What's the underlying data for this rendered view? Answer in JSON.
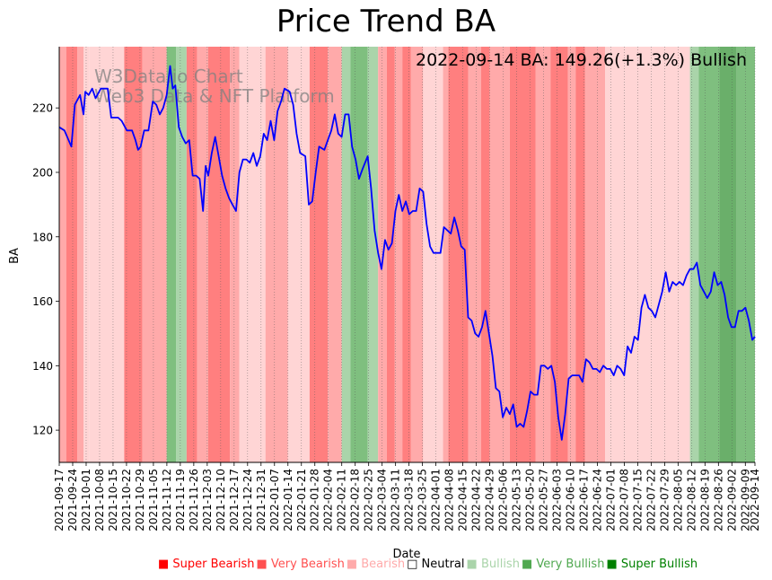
{
  "chart_data": {
    "type": "line",
    "title": "Price Trend BA",
    "xlabel": "Date",
    "ylabel": "BA",
    "ylim": [
      110,
      239
    ],
    "yticks": [
      120,
      140,
      160,
      180,
      200,
      220
    ],
    "annotation": "2022-09-14 BA: 149.26(+1.3%) Bullish",
    "watermark": [
      "W3Data.io Chart",
      "Web3 Data & NFT Platform"
    ],
    "x_start": "2021-09-17",
    "x_end": "2022-09-14",
    "xticks": [
      "2021-09-17",
      "2021-09-24",
      "2021-10-01",
      "2021-10-08",
      "2021-10-15",
      "2021-10-22",
      "2021-10-29",
      "2021-11-05",
      "2021-11-12",
      "2021-11-19",
      "2021-11-26",
      "2021-12-03",
      "2021-12-10",
      "2021-12-17",
      "2021-12-24",
      "2021-12-31",
      "2022-01-07",
      "2022-01-14",
      "2022-01-21",
      "2022-01-28",
      "2022-02-04",
      "2022-02-11",
      "2022-02-18",
      "2022-02-25",
      "2022-03-04",
      "2022-03-11",
      "2022-03-18",
      "2022-03-25",
      "2022-04-01",
      "2022-04-08",
      "2022-04-15",
      "2022-04-22",
      "2022-04-29",
      "2022-05-06",
      "2022-05-13",
      "2022-05-20",
      "2022-05-27",
      "2022-06-03",
      "2022-06-10",
      "2022-06-17",
      "2022-06-24",
      "2022-07-01",
      "2022-07-08",
      "2022-07-15",
      "2022-07-22",
      "2022-07-29",
      "2022-08-05",
      "2022-08-12",
      "2022-08-19",
      "2022-08-26",
      "2022-09-02",
      "2022-09-09",
      "2022-09-14"
    ],
    "sentiment_colors": {
      "super_bearish": "#ff0000",
      "very_bearish": "#ff5050",
      "bearish": "#ffaaaa",
      "neutral": "#ffffff",
      "bullish": "#aad4aa",
      "very_bullish": "#50a850",
      "super_bullish": "#008000"
    },
    "legend": [
      {
        "key": "super_bearish",
        "label": "Super Bearish",
        "symbol": "■",
        "color": "#ff0000"
      },
      {
        "key": "very_bearish",
        "label": "Very Bearish",
        "symbol": "■",
        "color": "#ff5050"
      },
      {
        "key": "bearish",
        "label": "Bearish",
        "symbol": "■",
        "color": "#ffaaaa"
      },
      {
        "key": "neutral",
        "label": "Neutral",
        "symbol": "□",
        "color": "#000000"
      },
      {
        "key": "bullish",
        "label": "Bullish",
        "symbol": "■",
        "color": "#aad4aa"
      },
      {
        "key": "very_bullish",
        "label": "Very Bullish",
        "symbol": "■",
        "color": "#50a850"
      },
      {
        "key": "super_bullish",
        "label": "Super Bullish",
        "symbol": "■",
        "color": "#008000"
      }
    ],
    "sentiment_bands": [
      {
        "start": 0,
        "end": 8,
        "level": "bearish"
      },
      {
        "start": 8,
        "end": 21,
        "level": "very_bearish"
      },
      {
        "start": 21,
        "end": 28,
        "level": "bearish"
      },
      {
        "start": 28,
        "end": 35,
        "level": "light"
      },
      {
        "start": 35,
        "end": 75,
        "level": "light"
      },
      {
        "start": 75,
        "end": 96,
        "level": "very_bearish"
      },
      {
        "start": 96,
        "end": 124,
        "level": "bearish"
      },
      {
        "start": 124,
        "end": 135,
        "level": "very_bullish"
      },
      {
        "start": 135,
        "end": 147,
        "level": "bullish"
      },
      {
        "start": 147,
        "end": 159,
        "level": "very_bearish"
      },
      {
        "start": 159,
        "end": 172,
        "level": "bearish"
      },
      {
        "start": 172,
        "end": 197,
        "level": "very_bearish"
      },
      {
        "start": 197,
        "end": 208,
        "level": "bearish"
      },
      {
        "start": 208,
        "end": 238,
        "level": "light"
      },
      {
        "start": 238,
        "end": 264,
        "level": "bearish"
      },
      {
        "start": 264,
        "end": 289,
        "level": "light"
      },
      {
        "start": 289,
        "end": 310,
        "level": "very_bearish"
      },
      {
        "start": 310,
        "end": 326,
        "level": "bearish"
      },
      {
        "start": 326,
        "end": 336,
        "level": "bullish"
      },
      {
        "start": 336,
        "end": 356,
        "level": "very_bullish"
      },
      {
        "start": 356,
        "end": 368,
        "level": "bullish"
      },
      {
        "start": 368,
        "end": 378,
        "level": "bearish"
      },
      {
        "start": 378,
        "end": 387,
        "level": "very_bearish"
      },
      {
        "start": 387,
        "end": 396,
        "level": "bearish"
      },
      {
        "start": 396,
        "end": 406,
        "level": "very_bearish"
      },
      {
        "start": 406,
        "end": 420,
        "level": "bearish"
      },
      {
        "start": 420,
        "end": 443,
        "level": "light"
      },
      {
        "start": 443,
        "end": 449,
        "level": "bearish"
      },
      {
        "start": 449,
        "end": 472,
        "level": "very_bearish"
      },
      {
        "start": 472,
        "end": 487,
        "level": "bearish"
      },
      {
        "start": 487,
        "end": 497,
        "level": "very_bearish"
      },
      {
        "start": 497,
        "end": 520,
        "level": "bearish"
      },
      {
        "start": 520,
        "end": 550,
        "level": "very_bearish"
      },
      {
        "start": 550,
        "end": 567,
        "level": "bearish"
      },
      {
        "start": 567,
        "end": 587,
        "level": "very_bearish"
      },
      {
        "start": 587,
        "end": 596,
        "level": "bearish"
      },
      {
        "start": 596,
        "end": 607,
        "level": "very_bearish"
      },
      {
        "start": 607,
        "end": 630,
        "level": "bearish"
      },
      {
        "start": 630,
        "end": 728,
        "level": "light"
      },
      {
        "start": 728,
        "end": 738,
        "level": "bullish"
      },
      {
        "start": 738,
        "end": 762,
        "level": "very_bullish"
      },
      {
        "start": 762,
        "end": 782,
        "level": "very_bullish_dark"
      },
      {
        "start": 782,
        "end": 803,
        "level": "very_bullish"
      },
      {
        "start": 803,
        "end": 842,
        "level": "light_bullish"
      }
    ],
    "series": [
      {
        "name": "BA",
        "color": "#0000ff",
        "points": [
          [
            0,
            214
          ],
          [
            6,
            213
          ],
          [
            14,
            208
          ],
          [
            18,
            221
          ],
          [
            24,
            224
          ],
          [
            28,
            218
          ],
          [
            30,
            225
          ],
          [
            34,
            224
          ],
          [
            38,
            226
          ],
          [
            42,
            223
          ],
          [
            48,
            226
          ],
          [
            56,
            226
          ],
          [
            60,
            217
          ],
          [
            68,
            217
          ],
          [
            72,
            216
          ],
          [
            78,
            213
          ],
          [
            84,
            213
          ],
          [
            88,
            210
          ],
          [
            91,
            207
          ],
          [
            94,
            208
          ],
          [
            98,
            213
          ],
          [
            103,
            213
          ],
          [
            108,
            222
          ],
          [
            112,
            221
          ],
          [
            116,
            218
          ],
          [
            120,
            220
          ],
          [
            124,
            224
          ],
          [
            128,
            233
          ],
          [
            131,
            226
          ],
          [
            134,
            227
          ],
          [
            138,
            214
          ],
          [
            142,
            211
          ],
          [
            146,
            209
          ],
          [
            150,
            210
          ],
          [
            154,
            199
          ],
          [
            158,
            199
          ],
          [
            162,
            198
          ],
          [
            166,
            188
          ],
          [
            169,
            202
          ],
          [
            172,
            199
          ],
          [
            176,
            206
          ],
          [
            180,
            211
          ],
          [
            184,
            205
          ],
          [
            188,
            199
          ],
          [
            192,
            195
          ],
          [
            196,
            192
          ],
          [
            200,
            190
          ],
          [
            204,
            188
          ],
          [
            208,
            200
          ],
          [
            212,
            204
          ],
          [
            216,
            204
          ],
          [
            220,
            203
          ],
          [
            224,
            206
          ],
          [
            228,
            202
          ],
          [
            232,
            205
          ],
          [
            236,
            212
          ],
          [
            240,
            210
          ],
          [
            244,
            216
          ],
          [
            248,
            210
          ],
          [
            252,
            219
          ],
          [
            256,
            222
          ],
          [
            260,
            226
          ],
          [
            266,
            225
          ],
          [
            270,
            221
          ],
          [
            274,
            212
          ],
          [
            278,
            206
          ],
          [
            284,
            205
          ],
          [
            288,
            190
          ],
          [
            292,
            191
          ],
          [
            296,
            200
          ],
          [
            300,
            208
          ],
          [
            306,
            207
          ],
          [
            310,
            210
          ],
          [
            314,
            213
          ],
          [
            318,
            218
          ],
          [
            322,
            212
          ],
          [
            326,
            211
          ],
          [
            330,
            218
          ],
          [
            334,
            218
          ],
          [
            338,
            208
          ],
          [
            342,
            204
          ],
          [
            346,
            198
          ],
          [
            350,
            201
          ],
          [
            356,
            205
          ],
          [
            360,
            195
          ],
          [
            364,
            182
          ],
          [
            368,
            175
          ],
          [
            372,
            170
          ],
          [
            376,
            179
          ],
          [
            380,
            176
          ],
          [
            384,
            178
          ],
          [
            388,
            188
          ],
          [
            392,
            193
          ],
          [
            396,
            188
          ],
          [
            400,
            191
          ],
          [
            404,
            187
          ],
          [
            408,
            188
          ],
          [
            412,
            188
          ],
          [
            416,
            195
          ],
          [
            420,
            194
          ],
          [
            424,
            184
          ],
          [
            428,
            177
          ],
          [
            432,
            175
          ],
          [
            436,
            175
          ],
          [
            440,
            175
          ],
          [
            444,
            183
          ],
          [
            448,
            182
          ],
          [
            452,
            181
          ],
          [
            456,
            186
          ],
          [
            460,
            182
          ],
          [
            464,
            177
          ],
          [
            468,
            176
          ],
          [
            472,
            155
          ],
          [
            476,
            154
          ],
          [
            480,
            150
          ],
          [
            484,
            149
          ],
          [
            488,
            152
          ],
          [
            492,
            157
          ],
          [
            496,
            150
          ],
          [
            500,
            143
          ],
          [
            504,
            133
          ],
          [
            508,
            132
          ],
          [
            512,
            124
          ],
          [
            516,
            127
          ],
          [
            520,
            125
          ],
          [
            524,
            128
          ],
          [
            528,
            121
          ],
          [
            532,
            122
          ],
          [
            536,
            121
          ],
          [
            540,
            126
          ],
          [
            544,
            132
          ],
          [
            548,
            131
          ],
          [
            552,
            131
          ],
          [
            556,
            140
          ],
          [
            560,
            140
          ],
          [
            564,
            139
          ],
          [
            568,
            140
          ],
          [
            572,
            135
          ],
          [
            576,
            124
          ],
          [
            580,
            117
          ],
          [
            584,
            125
          ],
          [
            588,
            136
          ],
          [
            592,
            137
          ],
          [
            596,
            137
          ],
          [
            600,
            137
          ],
          [
            604,
            135
          ],
          [
            608,
            142
          ],
          [
            612,
            141
          ],
          [
            616,
            139
          ],
          [
            620,
            139
          ],
          [
            624,
            138
          ],
          [
            628,
            140
          ],
          [
            632,
            139
          ],
          [
            636,
            139
          ],
          [
            640,
            137
          ],
          [
            644,
            140
          ],
          [
            648,
            139
          ],
          [
            652,
            137
          ],
          [
            656,
            146
          ],
          [
            660,
            144
          ],
          [
            664,
            149
          ],
          [
            668,
            148
          ],
          [
            672,
            158
          ],
          [
            676,
            162
          ],
          [
            680,
            158
          ],
          [
            684,
            157
          ],
          [
            688,
            155
          ],
          [
            692,
            159
          ],
          [
            696,
            163
          ],
          [
            700,
            169
          ],
          [
            704,
            163
          ],
          [
            708,
            166
          ],
          [
            712,
            165
          ],
          [
            716,
            166
          ],
          [
            720,
            165
          ],
          [
            724,
            168
          ],
          [
            728,
            170
          ],
          [
            732,
            170
          ],
          [
            736,
            172
          ],
          [
            740,
            165
          ],
          [
            744,
            163
          ],
          [
            748,
            161
          ],
          [
            752,
            163
          ],
          [
            756,
            169
          ],
          [
            760,
            165
          ],
          [
            764,
            166
          ],
          [
            768,
            162
          ],
          [
            772,
            155
          ],
          [
            776,
            152
          ],
          [
            780,
            152
          ],
          [
            784,
            157
          ],
          [
            788,
            157
          ],
          [
            792,
            158
          ],
          [
            796,
            154
          ],
          [
            800,
            148
          ],
          [
            803,
            149
          ]
        ]
      }
    ]
  }
}
